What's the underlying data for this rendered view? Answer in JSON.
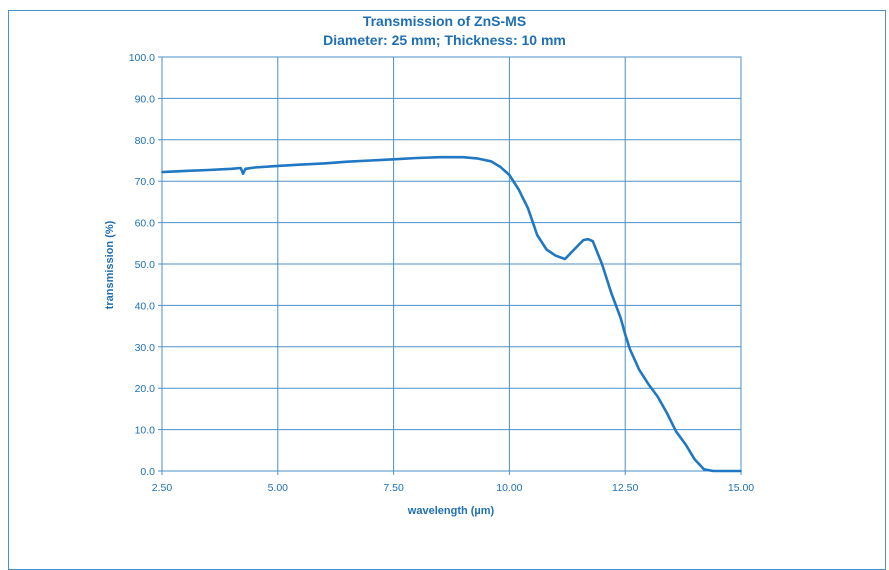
{
  "chart_data": {
    "type": "line",
    "title": "Transmission of ZnS-MS",
    "subtitle": "Diameter: 25 mm; Thickness: 10 mm",
    "xlabel": "wavelength (µm)",
    "ylabel": "transmission (%)",
    "xlim": [
      2.5,
      15.0
    ],
    "ylim": [
      0,
      100
    ],
    "x_ticks": [
      "2.50",
      "5.00",
      "7.50",
      "10.00",
      "12.50",
      "15.00"
    ],
    "y_ticks": [
      "0.0",
      "10.0",
      "20.0",
      "30.0",
      "40.0",
      "50.0",
      "60.0",
      "70.0",
      "80.0",
      "90.0",
      "100.0"
    ],
    "grid": true,
    "series": [
      {
        "color": "#1f78c1",
        "x": [
          2.5,
          3.0,
          3.5,
          4.0,
          4.2,
          4.25,
          4.3,
          4.5,
          5.0,
          5.5,
          6.0,
          6.5,
          7.0,
          7.5,
          8.0,
          8.5,
          9.0,
          9.3,
          9.6,
          9.8,
          10.0,
          10.2,
          10.4,
          10.6,
          10.8,
          11.0,
          11.2,
          11.4,
          11.6,
          11.7,
          11.8,
          12.0,
          12.2,
          12.4,
          12.5,
          12.6,
          12.8,
          13.0,
          13.2,
          13.4,
          13.6,
          13.8,
          14.0,
          14.2,
          14.4,
          15.0
        ],
        "y": [
          72.2,
          72.5,
          72.7,
          73.0,
          73.2,
          71.8,
          73.0,
          73.3,
          73.7,
          74.0,
          74.3,
          74.7,
          75.0,
          75.3,
          75.6,
          75.8,
          75.8,
          75.5,
          74.8,
          73.5,
          71.5,
          68.0,
          63.5,
          57.0,
          53.5,
          52.0,
          51.2,
          53.5,
          55.8,
          56.0,
          55.5,
          50.0,
          43.0,
          37.0,
          33.0,
          29.5,
          24.5,
          21.0,
          18.0,
          14.0,
          9.5,
          6.5,
          2.8,
          0.4,
          0.0,
          0.0
        ]
      }
    ]
  }
}
